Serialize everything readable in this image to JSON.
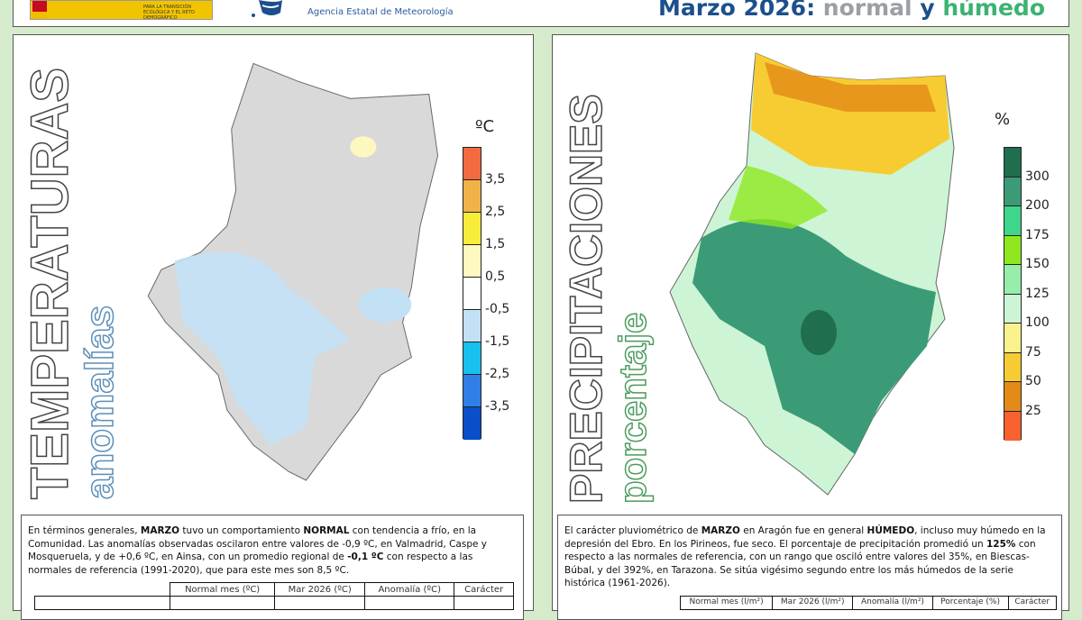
{
  "header": {
    "gov_text": "PARA LA TRANSICIÓN ECOLÓGICA Y EL RETO DEMOGRÁFICO",
    "agency": "Agencia Estatal de Meteorología",
    "title_month": "Marzo 2026:",
    "title_temp": "normal",
    "title_and": "y",
    "title_precip": "húmedo"
  },
  "temp": {
    "title": "TEMPERATURAS",
    "subtitle": "anomalías",
    "unit": "ºC",
    "legend_colors": [
      "#f26a3f",
      "#f0b34a",
      "#f7ec3a",
      "#fdf8c0",
      "#ffffff",
      "#c3e1f5",
      "#18c0ef",
      "#2f7fe6",
      "#0a4fc9"
    ],
    "legend_labels": [
      "3,5",
      "2,5",
      "1,5",
      "0,5",
      "-0,5",
      "-1,5",
      "-2,5",
      "-3,5"
    ],
    "text_parts": [
      "En términos generales, ",
      "MARZO",
      " tuvo un comportamiento ",
      "NORMAL",
      " con tendencia a frío, en la Comunidad. Las anomalías observadas oscilaron entre valores de -0,9 ºC, en Valmadrid, Caspe y Mosqueruela, y de +0,6 ºC, en Ainsa, con un promedio regional de ",
      "-0,1 ºC",
      " con respecto a las normales de referencia (1991-2020), que para este mes son 8,5 ºC."
    ],
    "table_headers": [
      "Normal mes (ºC)",
      "Mar 2026 (ºC)",
      "Anomalía (ºC)",
      "Carácter"
    ]
  },
  "precip": {
    "title": "PRECIPITACIONES",
    "subtitle": "porcentaje",
    "unit": "%",
    "legend_colors": [
      "#1f6e4e",
      "#3b9b77",
      "#3ed68a",
      "#8fe81f",
      "#96eeaa",
      "#cdf5d5",
      "#fbf28e",
      "#f7cc32",
      "#e48a18",
      "#f9622f"
    ],
    "legend_labels": [
      "300",
      "200",
      "175",
      "150",
      "125",
      "100",
      "75",
      "50",
      "25"
    ],
    "text_parts": [
      "El carácter pluviométrico de ",
      "MARZO",
      " en Aragón fue en general ",
      "HÚMEDO",
      ", incluso muy húmedo en la depresión del Ebro. En los Pirineos, fue seco. El porcentaje de precipitación promedió un ",
      "125%",
      " con respecto a las normales de referencia, con un rango que osciló entre valores del 35%, en Biescas-Búbal, y del 392%, en Tarazona. Se sitúa vigésimo segundo entre los más húmedos de la serie histórica (1961-2026)."
    ],
    "table_headers": [
      "Normal mes (l/m²)",
      "Mar 2026 (l/m²)",
      "Anomalía (l/m²)",
      "Porcentaje (%)",
      "Carácter"
    ]
  }
}
